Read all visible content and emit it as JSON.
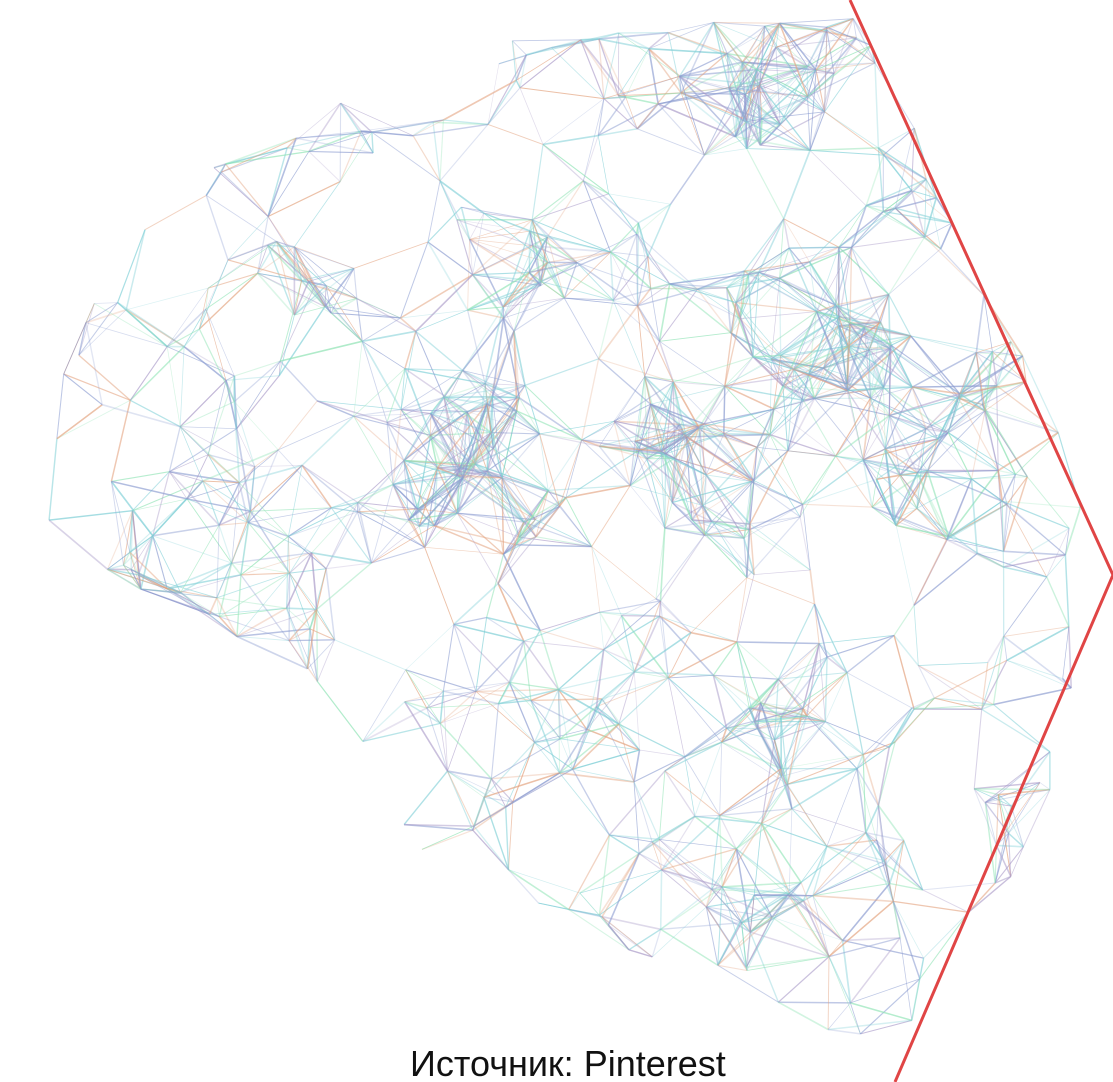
{
  "caption": "Источник: Pinterest"
}
